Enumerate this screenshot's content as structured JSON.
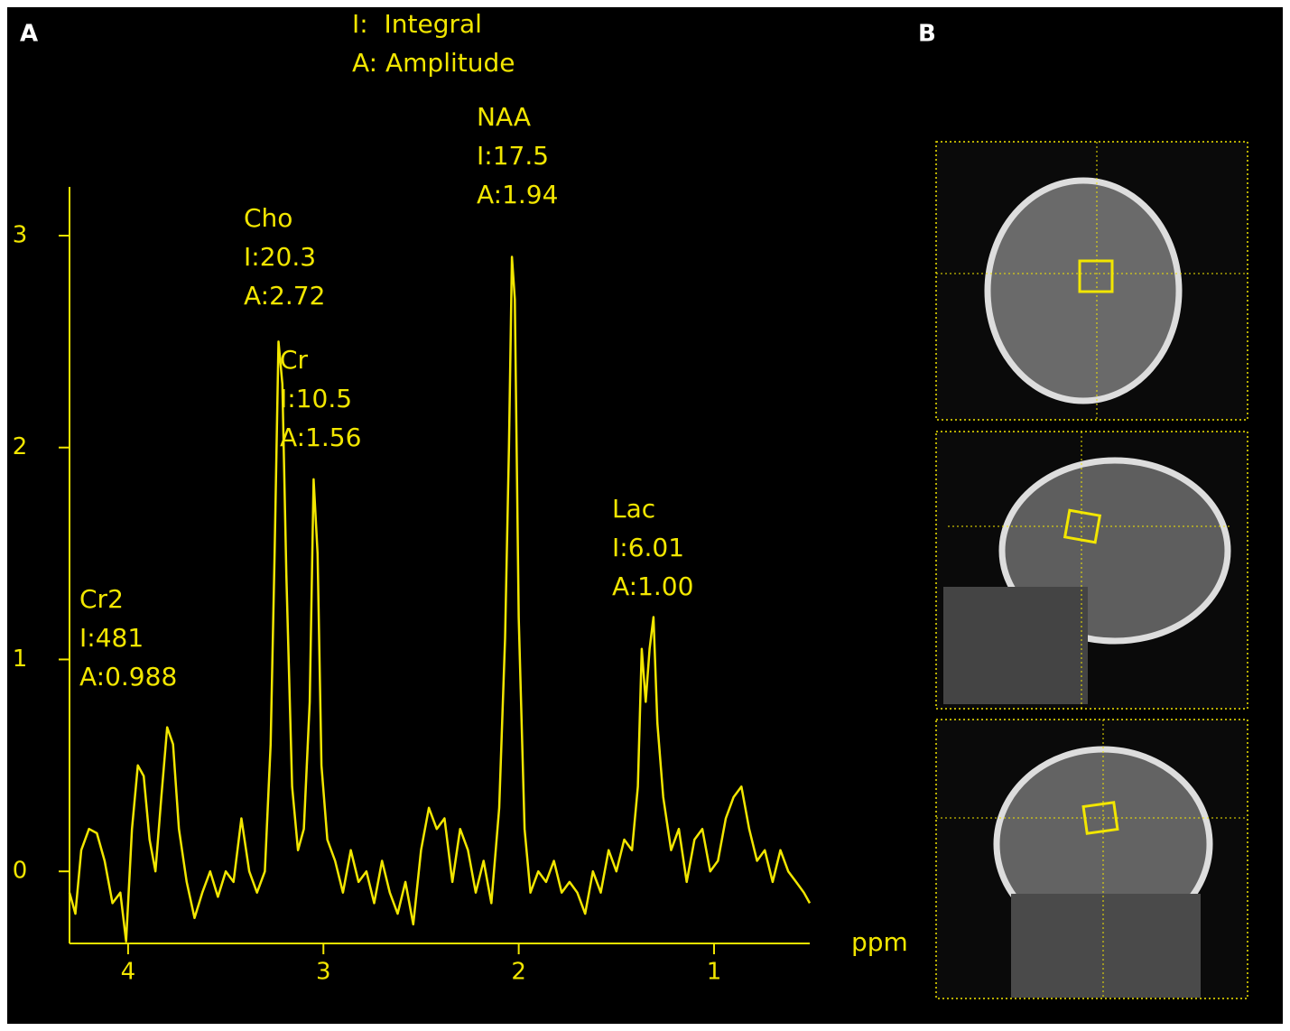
{
  "chart_data": {
    "type": "line",
    "panel_labels": [
      "A",
      "B"
    ],
    "legend_text": [
      "I:  Integral",
      "A: Amplitude"
    ],
    "xlabel": "ppm",
    "color": "#f2e600",
    "xlim": [
      4.3,
      0.51
    ],
    "ylim": [
      -0.34,
      3.23
    ],
    "xticks": [
      4,
      3,
      2,
      1
    ],
    "yticks": [
      0,
      1,
      2,
      3
    ],
    "annotations": [
      {
        "lines": [
          "Cr2",
          "I:481",
          "A:0.988"
        ]
      },
      {
        "lines": [
          "Cho",
          "I:20.3",
          "A:2.72"
        ]
      },
      {
        "lines": [
          "Cr",
          "I:10.5",
          "A:1.56"
        ]
      },
      {
        "lines": [
          "NAA",
          "I:17.5",
          "A:1.94"
        ]
      },
      {
        "lines": [
          "Lac",
          "I:6.01",
          "A:1.00"
        ]
      }
    ],
    "x": [
      4.3,
      4.27,
      4.24,
      4.2,
      4.16,
      4.12,
      4.08,
      4.04,
      4.01,
      3.98,
      3.95,
      3.92,
      3.89,
      3.86,
      3.83,
      3.8,
      3.77,
      3.74,
      3.7,
      3.66,
      3.62,
      3.58,
      3.54,
      3.5,
      3.46,
      3.42,
      3.38,
      3.34,
      3.3,
      3.27,
      3.25,
      3.23,
      3.21,
      3.19,
      3.16,
      3.13,
      3.1,
      3.07,
      3.05,
      3.03,
      3.01,
      2.98,
      2.94,
      2.9,
      2.86,
      2.82,
      2.78,
      2.74,
      2.7,
      2.66,
      2.62,
      2.58,
      2.54,
      2.5,
      2.46,
      2.42,
      2.38,
      2.34,
      2.3,
      2.26,
      2.22,
      2.18,
      2.14,
      2.1,
      2.07,
      2.05,
      2.035,
      2.02,
      2.0,
      1.97,
      1.94,
      1.9,
      1.86,
      1.82,
      1.78,
      1.74,
      1.7,
      1.66,
      1.62,
      1.58,
      1.54,
      1.5,
      1.46,
      1.42,
      1.39,
      1.37,
      1.35,
      1.33,
      1.31,
      1.29,
      1.26,
      1.22,
      1.18,
      1.14,
      1.1,
      1.06,
      1.02,
      0.98,
      0.94,
      0.9,
      0.86,
      0.82,
      0.78,
      0.74,
      0.7,
      0.66,
      0.62,
      0.58,
      0.54,
      0.51
    ],
    "values": [
      -0.1,
      -0.2,
      0.1,
      0.2,
      0.18,
      0.05,
      -0.15,
      -0.1,
      -0.33,
      0.2,
      0.5,
      0.45,
      0.15,
      0.0,
      0.35,
      0.68,
      0.6,
      0.2,
      -0.05,
      -0.22,
      -0.1,
      0.0,
      -0.12,
      0.0,
      -0.05,
      0.25,
      0.0,
      -0.1,
      0.0,
      0.6,
      1.5,
      2.5,
      2.3,
      1.4,
      0.4,
      0.1,
      0.2,
      0.8,
      1.85,
      1.5,
      0.5,
      0.15,
      0.05,
      -0.1,
      0.1,
      -0.05,
      0.0,
      -0.15,
      0.05,
      -0.1,
      -0.2,
      -0.05,
      -0.25,
      0.1,
      0.3,
      0.2,
      0.25,
      -0.05,
      0.2,
      0.1,
      -0.1,
      0.05,
      -0.15,
      0.3,
      1.1,
      2.0,
      2.9,
      2.7,
      1.2,
      0.2,
      -0.1,
      0.0,
      -0.05,
      0.05,
      -0.1,
      -0.05,
      -0.1,
      -0.2,
      0.0,
      -0.1,
      0.1,
      0.0,
      0.15,
      0.1,
      0.4,
      1.05,
      0.8,
      1.05,
      1.2,
      0.7,
      0.35,
      0.1,
      0.2,
      -0.05,
      0.15,
      0.2,
      0.0,
      0.05,
      0.25,
      0.35,
      0.4,
      0.2,
      0.05,
      0.1,
      -0.05,
      0.1,
      0.0,
      -0.05,
      -0.1,
      -0.15
    ]
  }
}
